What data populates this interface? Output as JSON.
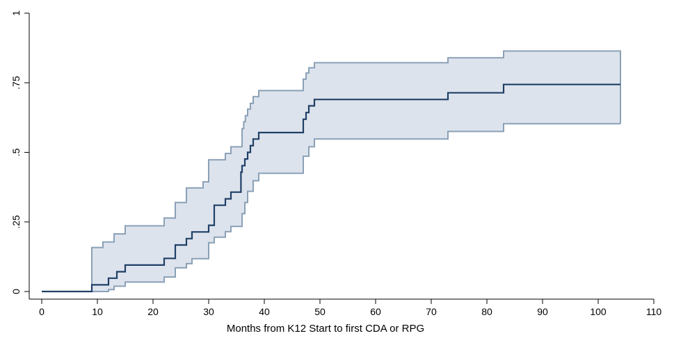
{
  "chart_data": {
    "type": "line",
    "title": "",
    "xlabel": "Months from K12 Start to first CDA or RPG",
    "ylabel": "",
    "xlim": [
      -2,
      111
    ],
    "ylim": [
      -0.03,
      1.0
    ],
    "xticks": [
      0,
      10,
      20,
      30,
      40,
      50,
      60,
      70,
      80,
      90,
      100,
      110
    ],
    "xtick_labels": [
      "0",
      "10",
      "20",
      "30",
      "40",
      "50",
      "60",
      "70",
      "80",
      "90",
      "100",
      "110"
    ],
    "yticks": [
      0,
      0.25,
      0.5,
      0.75,
      1
    ],
    "ytick_labels": [
      "0",
      ".25",
      ".5",
      ".75",
      "1"
    ],
    "grid": false,
    "legend": "none",
    "colors": {
      "estimate": "#1f3f66",
      "band_fill": "#dde3ec",
      "band_edge": "#8aa0b6"
    },
    "series": [
      {
        "role": "estimate",
        "step": true,
        "x": [
          0,
          9,
          12,
          13.5,
          15,
          22,
          24,
          26,
          27,
          30,
          31,
          33,
          34,
          35.8,
          36,
          36.5,
          37,
          37.5,
          38,
          39,
          47,
          47.5,
          48,
          49,
          73,
          83,
          104
        ],
        "y": [
          0,
          0.024,
          0.048,
          0.071,
          0.095,
          0.119,
          0.167,
          0.19,
          0.214,
          0.238,
          0.31,
          0.333,
          0.357,
          0.429,
          0.452,
          0.476,
          0.5,
          0.524,
          0.548,
          0.571,
          0.619,
          0.643,
          0.667,
          0.69,
          0.714,
          0.744,
          0.744
        ]
      },
      {
        "role": "upper-bound",
        "step": true,
        "x": [
          9,
          11,
          13,
          15,
          22,
          24,
          26,
          29,
          30,
          33,
          34,
          36,
          36.3,
          36.6,
          37,
          37.5,
          38,
          39,
          47,
          47.5,
          48,
          49,
          73,
          83,
          104
        ],
        "y": [
          0.158,
          0.178,
          0.207,
          0.236,
          0.264,
          0.32,
          0.372,
          0.394,
          0.473,
          0.496,
          0.52,
          0.585,
          0.61,
          0.632,
          0.655,
          0.676,
          0.7,
          0.722,
          0.763,
          0.785,
          0.804,
          0.822,
          0.84,
          0.864,
          0.864
        ]
      },
      {
        "role": "lower-bound",
        "step": true,
        "x": [
          9,
          12,
          13,
          15,
          22,
          24,
          26,
          27,
          30,
          31,
          33,
          34,
          36,
          36.5,
          37,
          38,
          39,
          47,
          48,
          49,
          73,
          83,
          104
        ],
        "y": [
          0.0,
          0.007,
          0.019,
          0.034,
          0.052,
          0.085,
          0.1,
          0.118,
          0.175,
          0.195,
          0.215,
          0.234,
          0.28,
          0.32,
          0.36,
          0.398,
          0.425,
          0.486,
          0.52,
          0.548,
          0.575,
          0.603,
          0.603
        ]
      }
    ]
  }
}
